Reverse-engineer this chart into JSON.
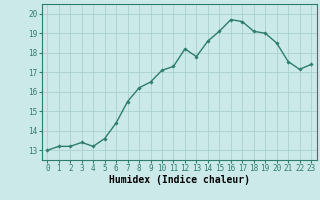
{
  "x": [
    0,
    1,
    2,
    3,
    4,
    5,
    6,
    7,
    8,
    9,
    10,
    11,
    12,
    13,
    14,
    15,
    16,
    17,
    18,
    19,
    20,
    21,
    22,
    23
  ],
  "y": [
    13.0,
    13.2,
    13.2,
    13.4,
    13.2,
    13.6,
    14.4,
    15.5,
    16.2,
    16.5,
    17.1,
    17.3,
    18.2,
    17.8,
    18.6,
    19.1,
    19.7,
    19.6,
    19.1,
    19.0,
    18.5,
    17.55,
    17.15,
    17.4
  ],
  "line_color": "#2e7d6e",
  "marker": "D",
  "marker_size": 1.8,
  "line_width": 1.0,
  "xlabel": "Humidex (Indice chaleur)",
  "xlabel_fontsize": 7,
  "xlim": [
    -0.5,
    23.5
  ],
  "ylim": [
    12.5,
    20.5
  ],
  "yticks": [
    13,
    14,
    15,
    16,
    17,
    18,
    19,
    20
  ],
  "xticks": [
    0,
    1,
    2,
    3,
    4,
    5,
    6,
    7,
    8,
    9,
    10,
    11,
    12,
    13,
    14,
    15,
    16,
    17,
    18,
    19,
    20,
    21,
    22,
    23
  ],
  "xtick_labels": [
    "0",
    "1",
    "2",
    "3",
    "4",
    "5",
    "6",
    "7",
    "8",
    "9",
    "10",
    "11",
    "12",
    "13",
    "14",
    "15",
    "16",
    "17",
    "18",
    "19",
    "20",
    "21",
    "22",
    "23"
  ],
  "background_color": "#cce9e9",
  "grid_color": "#aad0d0",
  "tick_fontsize": 5.5,
  "title": ""
}
